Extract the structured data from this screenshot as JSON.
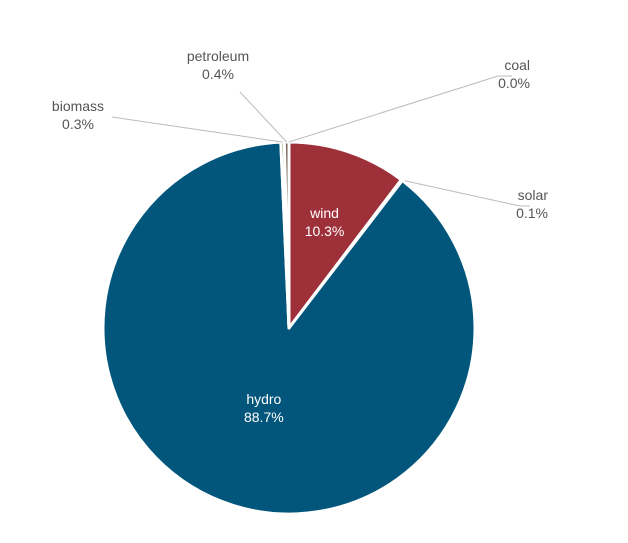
{
  "chart_data": {
    "type": "pie",
    "title": "",
    "slices": [
      {
        "label": "wind",
        "value": 10.3,
        "display": "10.3%",
        "color": "#9e3039",
        "text_color": "#ffffff",
        "label_style": "inside"
      },
      {
        "label": "solar",
        "value": 0.1,
        "display": "0.1%",
        "color": "#e8c96b",
        "text_color": "#555555",
        "label_style": "outside"
      },
      {
        "label": "hydro",
        "value": 88.7,
        "display": "88.7%",
        "color": "#02557b",
        "text_color": "#ffffff",
        "label_style": "inside"
      },
      {
        "label": "biomass",
        "value": 0.3,
        "display": "0.3%",
        "color": "#5e8a3a",
        "text_color": "#555555",
        "label_style": "outside"
      },
      {
        "label": "petroleum",
        "value": 0.4,
        "display": "0.4%",
        "color": "#7a6a5a",
        "text_color": "#555555",
        "label_style": "outside"
      },
      {
        "label": "coal",
        "value": 0.0,
        "display": "0.0%",
        "color": "#444444",
        "text_color": "#555555",
        "label_style": "outside"
      }
    ],
    "slice_border_color": "#ffffff",
    "leader_line_color": "#bbbbbb",
    "legend": "none",
    "grid": false
  }
}
